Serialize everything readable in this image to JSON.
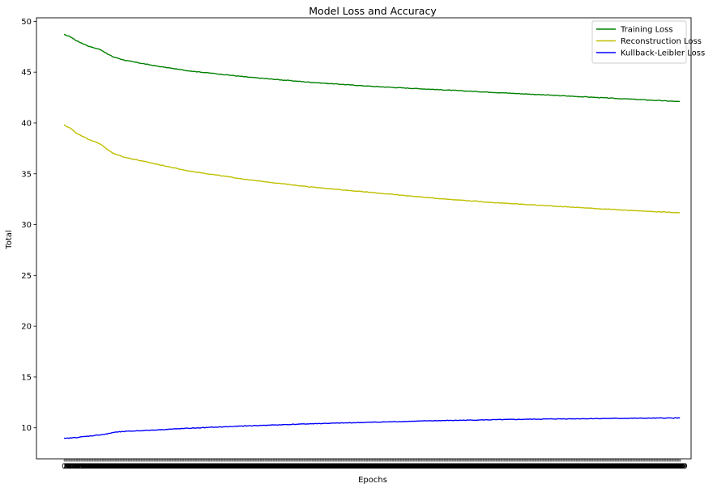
{
  "chart_data": {
    "type": "line",
    "title": "Model Loss and Accuracy",
    "xlabel": "Epochs",
    "ylabel": "Total",
    "ylim": [
      6.95,
      50.35
    ],
    "yticks": [
      10,
      15,
      20,
      25,
      30,
      35,
      40,
      45,
      50
    ],
    "grid": false,
    "legend_position": "top-right",
    "n_epochs": 1000,
    "series": [
      {
        "name": "Training Loss",
        "color": "#008000",
        "x": [
          0,
          10,
          20,
          40,
          60,
          70,
          80,
          100,
          150,
          200,
          300,
          400,
          500,
          600,
          700,
          800,
          900,
          999
        ],
        "values": [
          48.7,
          48.5,
          48.1,
          47.55,
          47.2,
          46.8,
          46.5,
          46.15,
          45.6,
          45.15,
          44.5,
          44.0,
          43.6,
          43.3,
          43.0,
          42.7,
          42.4,
          42.1
        ]
      },
      {
        "name": "Reconstruction Loss",
        "color": "#bfbf00",
        "x": [
          0,
          10,
          20,
          40,
          60,
          70,
          80,
          100,
          150,
          200,
          300,
          400,
          500,
          600,
          700,
          800,
          900,
          999
        ],
        "values": [
          39.8,
          39.5,
          39.0,
          38.4,
          37.9,
          37.4,
          37.0,
          36.6,
          35.95,
          35.3,
          34.4,
          33.7,
          33.15,
          32.6,
          32.15,
          31.8,
          31.45,
          31.15
        ]
      },
      {
        "name": "Kullback-Leibler Loss",
        "color": "#0000ff",
        "x": [
          0,
          20,
          50,
          70,
          80,
          100,
          150,
          200,
          300,
          400,
          500,
          600,
          700,
          800,
          900,
          999
        ],
        "values": [
          8.95,
          9.05,
          9.25,
          9.4,
          9.55,
          9.65,
          9.8,
          9.95,
          10.2,
          10.4,
          10.55,
          10.7,
          10.8,
          10.88,
          10.93,
          10.97
        ]
      }
    ]
  }
}
